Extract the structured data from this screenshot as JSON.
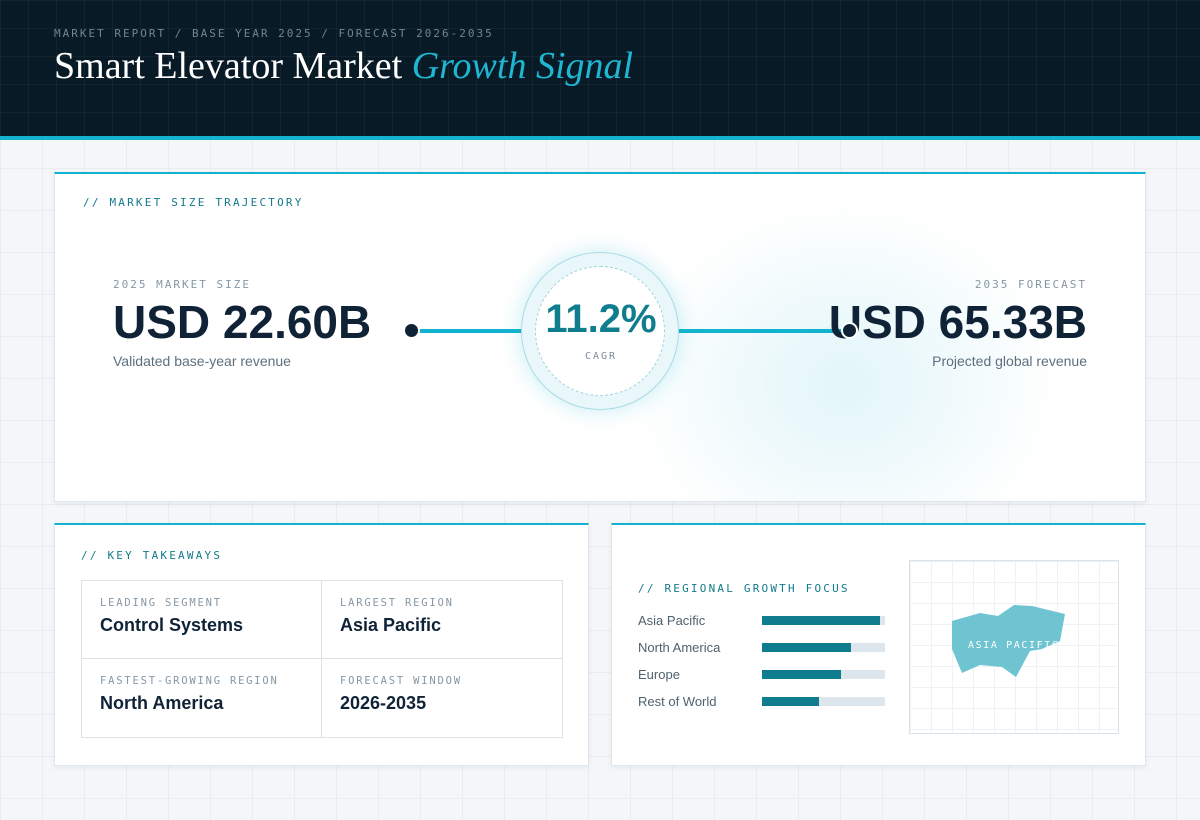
{
  "header": {
    "breadcrumb": "MARKET REPORT / BASE YEAR 2025 / FORECAST 2026-2035",
    "title_main": "Smart Elevator Market",
    "title_accent": "Growth Signal"
  },
  "trajectory": {
    "section_label": "// MARKET SIZE TRAJECTORY",
    "base": {
      "label": "2025 MARKET SIZE",
      "value": "USD 22.60B",
      "sub": "Validated base-year revenue"
    },
    "cagr": {
      "value": "11.2%",
      "label": "CAGR"
    },
    "forecast": {
      "label": "2035 FORECAST",
      "value": "USD 65.33B",
      "sub": "Projected global revenue"
    }
  },
  "takeaways": {
    "section_label": "// KEY TAKEAWAYS",
    "items": [
      {
        "label": "LEADING SEGMENT",
        "value": "Control Systems"
      },
      {
        "label": "LARGEST REGION",
        "value": "Asia Pacific"
      },
      {
        "label": "FASTEST-GROWING REGION",
        "value": "North America"
      },
      {
        "label": "FORECAST WINDOW",
        "value": "2026-2035"
      }
    ]
  },
  "regional": {
    "section_label": "// REGIONAL GROWTH FOCUS",
    "bars": [
      {
        "label": "Asia Pacific",
        "level": 0.96
      },
      {
        "label": "North America",
        "level": 0.72
      },
      {
        "label": "Europe",
        "level": 0.64
      },
      {
        "label": "Rest of World",
        "level": 0.46
      }
    ],
    "map_label": "ASIA PACIFIC"
  },
  "colors": {
    "header_bg": "#091a27",
    "accent": "#12b3cf",
    "teal": "#0f7d8e",
    "navy": "#0f2236",
    "map_fill": "#6fc4d1"
  }
}
